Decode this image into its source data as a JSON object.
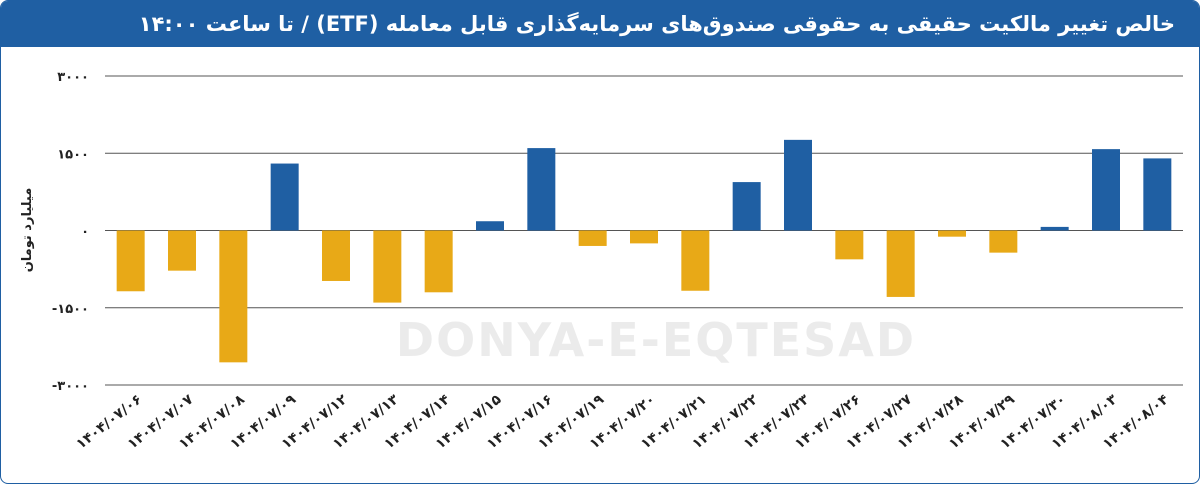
{
  "title": "خالص تغییر مالکیت حقیقی به حقوقی صندوق‌های سرمایه‌گذاری قابل معامله (ETF)  / تا ساعت ۱۴:۰۰",
  "watermark": "DONYA-E-EQTESAD",
  "colors": {
    "header": "#1f5fa3",
    "positive": "#1f5fa3",
    "negative": "#e8a917"
  },
  "chart_data": {
    "type": "bar",
    "ylabel": "میلیارد تومان",
    "ylim": [
      -3000,
      3000
    ],
    "yticks": [
      3000,
      1500,
      0,
      -1500,
      -3000
    ],
    "ytick_labels": [
      "۳۰۰۰",
      "۱۵۰۰",
      "۰",
      "-۱۵۰۰",
      "-۳۰۰۰"
    ],
    "grid": true,
    "categories": [
      "۱۴۰۴/۰۷/۰۶",
      "۱۴۰۴/۰۷/۰۷",
      "۱۴۰۴/۰۷/۰۸",
      "۱۴۰۴/۰۷/۰۹",
      "۱۴۰۴/۰۷/۱۲",
      "۱۴۰۴/۰۷/۱۳",
      "۱۴۰۴/۰۷/۱۴",
      "۱۴۰۴/۰۷/۱۵",
      "۱۴۰۴/۰۷/۱۶",
      "۱۴۰۴/۰۷/۱۹",
      "۱۴۰۴/۰۷/۲۰",
      "۱۴۰۴/۰۷/۲۱",
      "۱۴۰۴/۰۷/۲۲",
      "۱۴۰۴/۰۷/۲۳",
      "۱۴۰۴/۰۷/۲۶",
      "۱۴۰۴/۰۷/۲۷",
      "۱۴۰۴/۰۷/۲۸",
      "۱۴۰۴/۰۷/۲۹",
      "۱۴۰۴/۰۷/۳۰",
      "۱۴۰۴/۰۸/۰۳",
      "۱۴۰۴/۰۸/۰۴"
    ],
    "values": [
      -1180,
      -780,
      -2560,
      1300,
      -980,
      -1400,
      -1200,
      180,
      1600,
      -300,
      -250,
      -1170,
      940,
      1760,
      -560,
      -1290,
      -120,
      -430,
      70,
      1580,
      1400
    ]
  }
}
